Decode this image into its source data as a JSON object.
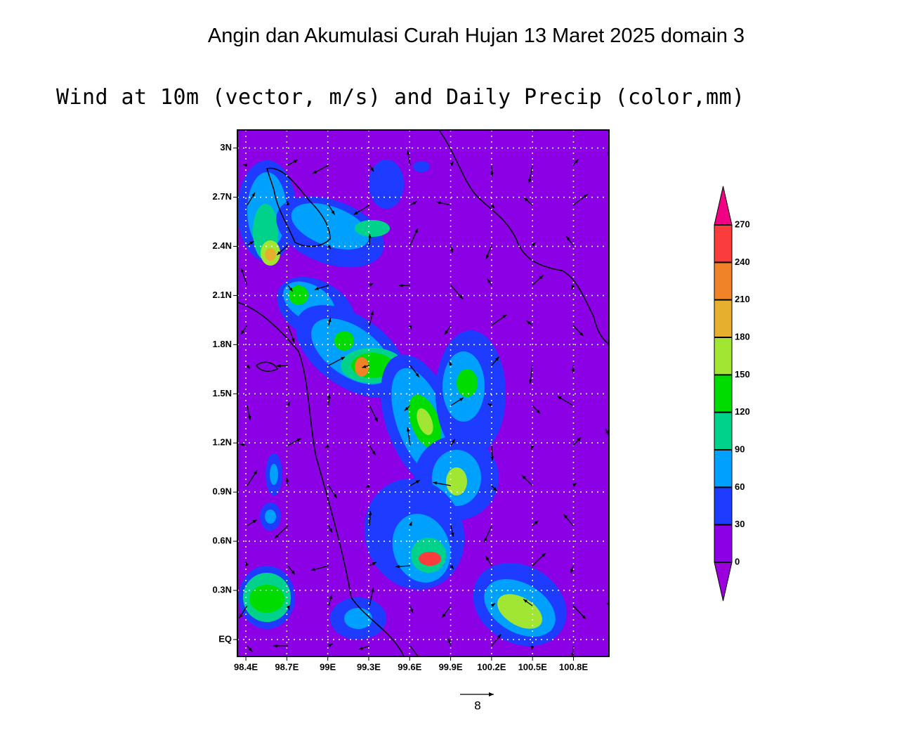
{
  "page_title": "Angin dan Akumulasi Curah Hujan 13 Maret 2025 domain 3",
  "chart_data": {
    "type": "map",
    "title": "Wind at 10m (vector, m/s) and Daily Precip (color,mm)",
    "xlim": [
      98.338,
      101.06
    ],
    "ylim": [
      -0.103,
      3.11
    ],
    "xticks": [
      {
        "value": 98.4,
        "label": "98.4E"
      },
      {
        "value": 98.7,
        "label": "98.7E"
      },
      {
        "value": 99,
        "label": "99E"
      },
      {
        "value": 99.3,
        "label": "99.3E"
      },
      {
        "value": 99.6,
        "label": "99.6E"
      },
      {
        "value": 99.9,
        "label": "99.9E"
      },
      {
        "value": 100.2,
        "label": "100.2E"
      },
      {
        "value": 100.5,
        "label": "100.5E"
      },
      {
        "value": 100.8,
        "label": "100.8E"
      }
    ],
    "yticks": [
      {
        "value": 0,
        "label": "EQ"
      },
      {
        "value": 0.3,
        "label": "0.3N"
      },
      {
        "value": 0.6,
        "label": "0.6N"
      },
      {
        "value": 0.9,
        "label": "0.9N"
      },
      {
        "value": 1.2,
        "label": "1.2N"
      },
      {
        "value": 1.5,
        "label": "1.5N"
      },
      {
        "value": 1.8,
        "label": "1.8N"
      },
      {
        "value": 2.1,
        "label": "2.1N"
      },
      {
        "value": 2.4,
        "label": "2.4N"
      },
      {
        "value": 2.7,
        "label": "2.7N"
      },
      {
        "value": 3,
        "label": "3N"
      }
    ],
    "grid": true,
    "colorbar": {
      "levels": [
        0,
        30,
        60,
        90,
        120,
        150,
        180,
        210,
        240,
        270
      ],
      "colors": [
        "#9b00dc",
        "#8c00e6",
        "#1e3cff",
        "#00a0ff",
        "#00d28c",
        "#00dc00",
        "#a0e632",
        "#e6af2d",
        "#f08228",
        "#fa3c3c",
        "#f00082"
      ]
    },
    "vector_reference": 8
  }
}
